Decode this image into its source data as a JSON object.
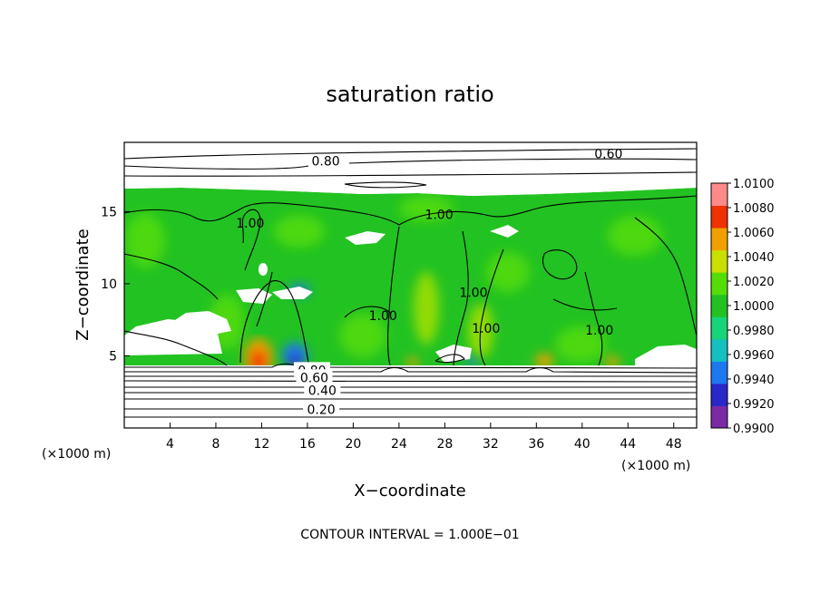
{
  "chart_data": {
    "type": "heatmap",
    "title": "saturation ratio",
    "xlabel": "X−coordinate",
    "ylabel": "Z−coordinate",
    "x_unit": "(×1000 m)",
    "z_unit": "(×1000 m)",
    "xlim": [
      0,
      50
    ],
    "ylim": [
      0,
      19.8
    ],
    "x_ticks": [
      4,
      8,
      12,
      16,
      20,
      24,
      28,
      32,
      36,
      40,
      44,
      48
    ],
    "y_ticks": [
      5,
      10,
      15
    ],
    "footer": "CONTOUR INTERVAL = 1.000E−01",
    "grid": false,
    "colorbar": {
      "levels": [
        "1.0100",
        "1.0080",
        "1.0060",
        "1.0040",
        "1.0020",
        "1.0000",
        "0.9980",
        "0.9960",
        "0.9940",
        "0.9920",
        "0.9900"
      ],
      "colors": [
        "#7b2aa6",
        "#2a28c8",
        "#1d78f0",
        "#14c0c0",
        "#17d47a",
        "#22c222",
        "#55dd08",
        "#c8df00",
        "#f0a000",
        "#f03200",
        "#ff8a8a"
      ]
    },
    "contour_labels": [
      {
        "text": "0.60",
        "x": 42.3,
        "z": 19.0
      },
      {
        "text": "0.80",
        "x": 17.6,
        "z": 18.5
      },
      {
        "text": "1.00",
        "x": 11.0,
        "z": 14.2
      },
      {
        "text": "1.00",
        "x": 27.5,
        "z": 14.8
      },
      {
        "text": "1.00",
        "x": 30.5,
        "z": 9.4
      },
      {
        "text": "1.00",
        "x": 22.6,
        "z": 7.8
      },
      {
        "text": "1.00",
        "x": 31.6,
        "z": 6.9
      },
      {
        "text": "1.00",
        "x": 41.5,
        "z": 6.8
      },
      {
        "text": "0.80",
        "x": 16.4,
        "z": 4.0
      },
      {
        "text": "0.60",
        "x": 16.6,
        "z": 3.5
      },
      {
        "text": "0.40",
        "x": 17.3,
        "z": 2.6
      },
      {
        "text": "0.20",
        "x": 17.2,
        "z": 1.3
      }
    ]
  }
}
